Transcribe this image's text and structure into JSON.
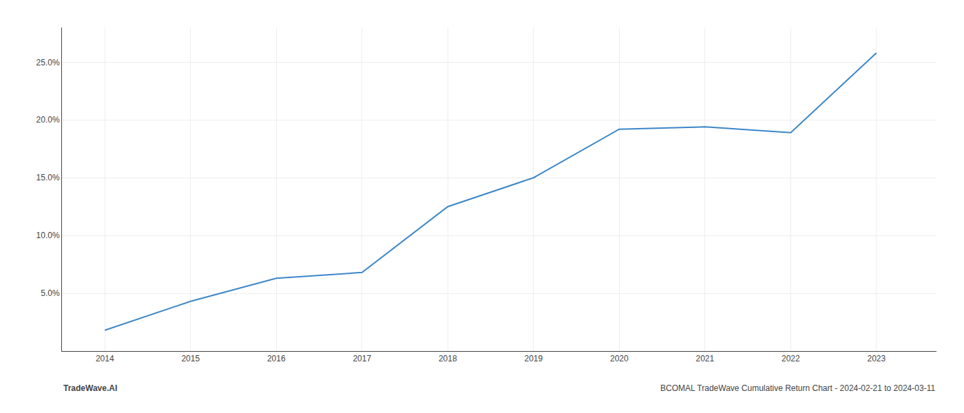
{
  "chart_data": {
    "type": "line",
    "x": [
      2014,
      2015,
      2016,
      2017,
      2018,
      2019,
      2020,
      2021,
      2022,
      2023
    ],
    "values": [
      1.8,
      4.3,
      6.3,
      6.8,
      12.5,
      15.0,
      19.2,
      19.4,
      18.9,
      25.8
    ],
    "color": "#3a86c8",
    "xlim": [
      2013.5,
      2023.7
    ],
    "xticks": [
      2014,
      2015,
      2016,
      2017,
      2018,
      2019,
      2020,
      2021,
      2022,
      2023
    ],
    "ylim": [
      0,
      28
    ],
    "yticks": [
      {
        "value": 5.0,
        "label": "5.0%"
      },
      {
        "value": 10.0,
        "label": "10.0%"
      },
      {
        "value": 15.0,
        "label": "15.0%"
      },
      {
        "value": 20.0,
        "label": "20.0%"
      },
      {
        "value": 25.0,
        "label": "25.0%"
      }
    ],
    "grid": true,
    "annotations": [
      "TradeWave.AI",
      "BCOMAL TradeWave Cumulative Return Chart - 2024-02-21 to 2024-03-11"
    ]
  }
}
